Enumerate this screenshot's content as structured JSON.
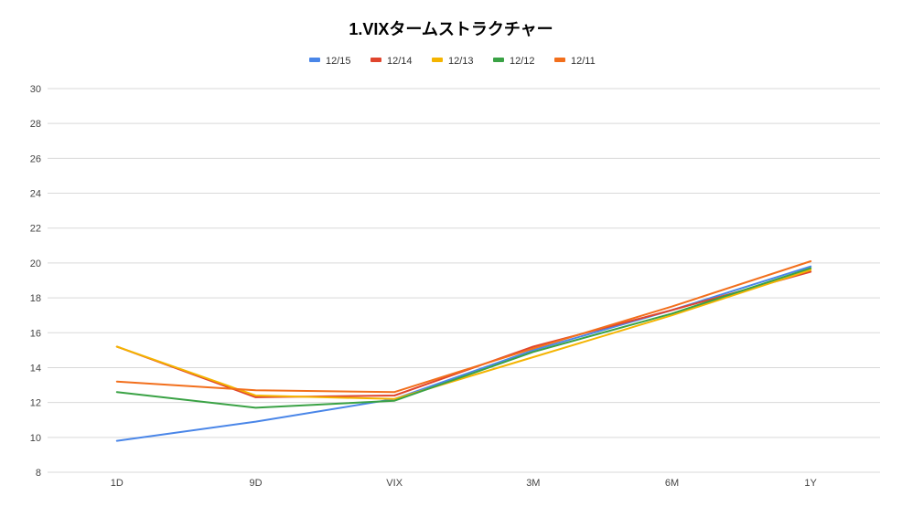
{
  "chart_data": {
    "type": "line",
    "title": "1.VIXタームストラクチャー",
    "xlabel": "",
    "ylabel": "",
    "categories": [
      "1D",
      "9D",
      "VIX",
      "3M",
      "6M",
      "1Y"
    ],
    "ylim": [
      8,
      30
    ],
    "yticks": [
      8,
      10,
      12,
      14,
      16,
      18,
      20,
      22,
      24,
      26,
      28,
      30
    ],
    "grid": true,
    "legend_position": "top",
    "series": [
      {
        "name": "12/15",
        "color": "#4a86e8",
        "values": [
          9.8,
          10.9,
          12.2,
          15.0,
          17.3,
          19.8
        ]
      },
      {
        "name": "12/14",
        "color": "#e0452d",
        "values": [
          15.2,
          12.3,
          12.4,
          15.2,
          17.3,
          19.5
        ]
      },
      {
        "name": "12/13",
        "color": "#f4b400",
        "values": [
          15.2,
          12.4,
          12.2,
          14.6,
          17.0,
          19.6
        ]
      },
      {
        "name": "12/12",
        "color": "#3aa245",
        "values": [
          12.6,
          11.7,
          12.1,
          14.9,
          17.1,
          19.7
        ]
      },
      {
        "name": "12/11",
        "color": "#f26f1c",
        "values": [
          13.2,
          12.7,
          12.6,
          15.1,
          17.5,
          20.1
        ]
      }
    ]
  }
}
